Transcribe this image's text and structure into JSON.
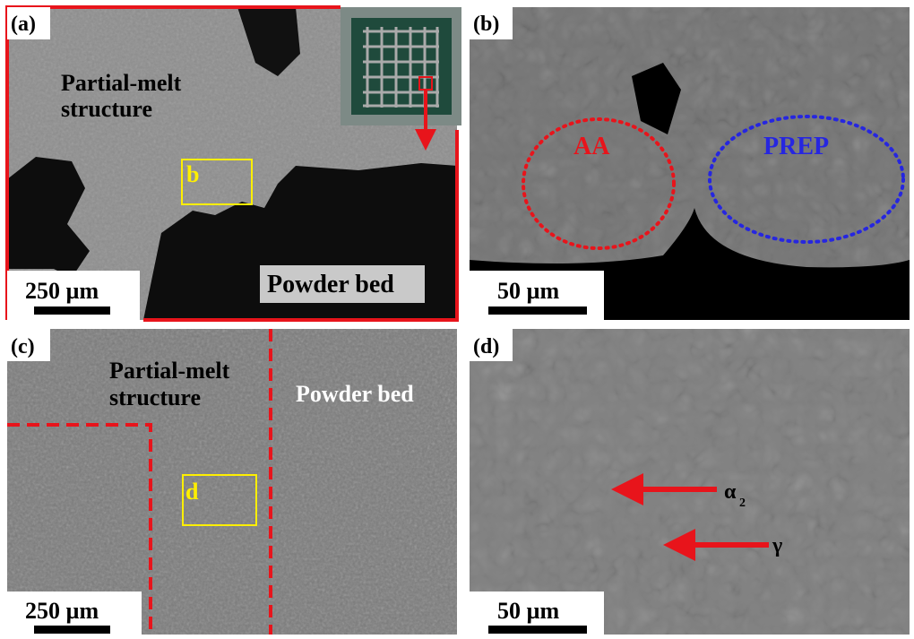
{
  "panels": [
    {
      "label": "(a)",
      "scale_bar": "250 µm",
      "texts": [
        "Partial-melt",
        "structure",
        "Powder bed"
      ],
      "box_label": "b"
    },
    {
      "label": "(b)",
      "scale_bar": "50 µm",
      "texts": [
        "AA",
        "PREP"
      ]
    },
    {
      "label": "(c)",
      "scale_bar": "250 µm",
      "texts": [
        "Partial-melt",
        "structure",
        "Powder bed"
      ],
      "box_label": "d"
    },
    {
      "label": "(d)",
      "scale_bar": "50 µm",
      "texts": [
        "α",
        "2",
        "γ"
      ]
    }
  ]
}
